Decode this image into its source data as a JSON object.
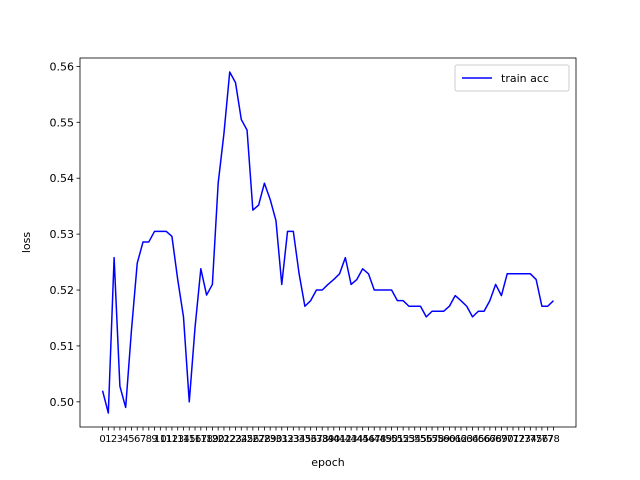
{
  "chart_data": {
    "type": "line",
    "title": "",
    "xlabel": "epoch",
    "ylabel": "loss",
    "ylim": [
      0.4955,
      0.5615
    ],
    "yticks": [
      0.5,
      0.51,
      0.52,
      0.53,
      0.54,
      0.55,
      0.56
    ],
    "ytick_labels": [
      "0.50",
      "0.51",
      "0.52",
      "0.53",
      "0.54",
      "0.55",
      "0.56"
    ],
    "grid": false,
    "legend_position": "top-right",
    "series": [
      {
        "name": "train acc",
        "color": "#0000ff",
        "x": [
          0,
          1,
          2,
          3,
          4,
          5,
          6,
          7,
          8,
          9,
          10,
          11,
          12,
          13,
          14,
          15,
          16,
          17,
          18,
          19,
          20,
          21,
          22,
          23,
          24,
          25,
          26,
          27,
          28,
          29,
          30,
          31,
          32,
          33,
          34,
          35,
          36,
          37,
          38,
          39,
          40,
          41,
          42,
          43,
          44,
          45,
          46,
          47,
          48,
          49,
          50,
          51,
          52,
          53,
          54,
          55,
          56,
          57,
          58,
          59,
          60,
          61,
          62,
          63,
          64,
          65,
          66,
          67,
          68,
          69,
          70,
          71,
          72,
          73,
          74,
          75,
          76,
          77,
          78
        ],
        "values": [
          0.502,
          0.498,
          0.5258,
          0.5028,
          0.499,
          0.5128,
          0.5248,
          0.5286,
          0.5286,
          0.5305,
          0.5305,
          0.5305,
          0.5296,
          0.5219,
          0.5152,
          0.5,
          0.5133,
          0.5238,
          0.5191,
          0.521,
          0.5391,
          0.548,
          0.559,
          0.5571,
          0.5505,
          0.5486,
          0.5343,
          0.5352,
          0.5391,
          0.5362,
          0.5324,
          0.521,
          0.5305,
          0.5305,
          0.5229,
          0.5171,
          0.5181,
          0.52,
          0.52,
          0.521,
          0.5219,
          0.5229,
          0.5258,
          0.521,
          0.5219,
          0.5238,
          0.5229,
          0.52,
          0.52,
          0.52,
          0.52,
          0.5181,
          0.5181,
          0.5171,
          0.5171,
          0.5171,
          0.5152,
          0.5162,
          0.5162,
          0.5162,
          0.5171,
          0.519,
          0.5181,
          0.5171,
          0.5152,
          0.5162,
          0.5162,
          0.5181,
          0.521,
          0.519,
          0.5229,
          0.5229,
          0.5229,
          0.5229,
          0.5229,
          0.5219,
          0.5171,
          0.5171,
          0.5181
        ]
      }
    ]
  }
}
